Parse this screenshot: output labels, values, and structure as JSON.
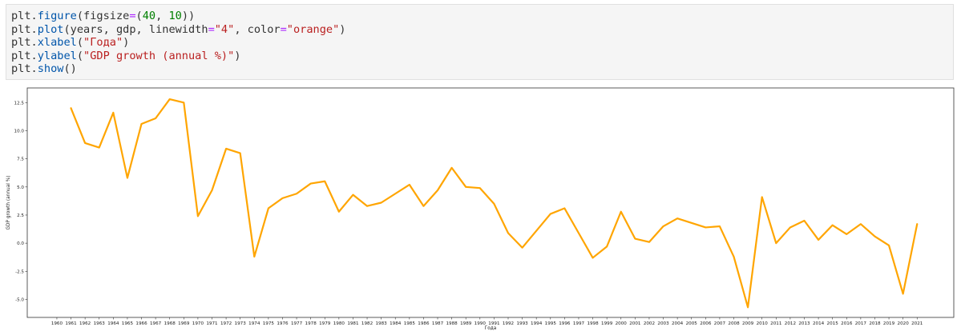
{
  "code_cell": {
    "lines": [
      [
        {
          "t": "plt.",
          "c": "name"
        },
        {
          "t": "figure",
          "c": "fn"
        },
        {
          "t": "(figsize",
          "c": "name"
        },
        {
          "t": "=",
          "c": "op"
        },
        {
          "t": "(",
          "c": "name"
        },
        {
          "t": "40",
          "c": "num"
        },
        {
          "t": ", ",
          "c": "name"
        },
        {
          "t": "10",
          "c": "num"
        },
        {
          "t": "))",
          "c": "name"
        }
      ],
      [
        {
          "t": "plt.",
          "c": "name"
        },
        {
          "t": "plot",
          "c": "fn"
        },
        {
          "t": "(years, gdp, linewidth",
          "c": "name"
        },
        {
          "t": "=",
          "c": "op"
        },
        {
          "t": "\"4\"",
          "c": "str"
        },
        {
          "t": ", color",
          "c": "name"
        },
        {
          "t": "=",
          "c": "op"
        },
        {
          "t": "\"orange\"",
          "c": "str"
        },
        {
          "t": ")",
          "c": "name"
        }
      ],
      [
        {
          "t": "plt.",
          "c": "name"
        },
        {
          "t": "xlabel",
          "c": "fn"
        },
        {
          "t": "(",
          "c": "name"
        },
        {
          "t": "\"Года\"",
          "c": "str"
        },
        {
          "t": ")",
          "c": "name"
        }
      ],
      [
        {
          "t": "plt.",
          "c": "name"
        },
        {
          "t": "ylabel",
          "c": "fn"
        },
        {
          "t": "(",
          "c": "name"
        },
        {
          "t": "\"GDP growth (annual %)\"",
          "c": "str"
        },
        {
          "t": ")",
          "c": "name"
        }
      ],
      [
        {
          "t": "plt.",
          "c": "name"
        },
        {
          "t": "show",
          "c": "fn"
        },
        {
          "t": "()",
          "c": "name"
        }
      ]
    ]
  },
  "chart_data": {
    "type": "line",
    "title": "",
    "xlabel": "Года",
    "ylabel": "GDP growth (annual %)",
    "line_color": "#ffa500",
    "x_ticks": [
      "1960",
      "1961",
      "1962",
      "1963",
      "1964",
      "1965",
      "1966",
      "1967",
      "1968",
      "1969",
      "1970",
      "1971",
      "1972",
      "1973",
      "1974",
      "1975",
      "1976",
      "1977",
      "1978",
      "1979",
      "1980",
      "1981",
      "1982",
      "1983",
      "1984",
      "1985",
      "1986",
      "1987",
      "1988",
      "1989",
      "1990",
      "1991",
      "1992",
      "1993",
      "1994",
      "1995",
      "1996",
      "1997",
      "1998",
      "1999",
      "2000",
      "2001",
      "2002",
      "2003",
      "2004",
      "2005",
      "2006",
      "2007",
      "2008",
      "2009",
      "2010",
      "2011",
      "2012",
      "2013",
      "2014",
      "2015",
      "2016",
      "2017",
      "2018",
      "2019",
      "2020",
      "2021"
    ],
    "y_ticks": [
      "-5.0",
      "-2.5",
      "0.0",
      "2.5",
      "5.0",
      "7.5",
      "10.0",
      "12.5"
    ],
    "y_tick_values": [
      -5.0,
      -2.5,
      0.0,
      2.5,
      5.0,
      7.5,
      10.0,
      12.5
    ],
    "xlim": [
      1959.0,
      1962.0
    ],
    "ylim": [
      -6.6,
      13.8
    ],
    "x": [
      1961,
      1962,
      1963,
      1964,
      1965,
      1966,
      1967,
      1968,
      1969,
      1970,
      1971,
      1972,
      1973,
      1974,
      1975,
      1976,
      1977,
      1978,
      1979,
      1980,
      1981,
      1982,
      1983,
      1984,
      1985,
      1986,
      1987,
      1988,
      1989,
      1990,
      1991,
      1992,
      1993,
      1994,
      1995,
      1996,
      1997,
      1998,
      1999,
      2000,
      2001,
      2002,
      2003,
      2004,
      2005,
      2006,
      2007,
      2008,
      2009,
      2010,
      2011,
      2012,
      2013,
      2014,
      2015,
      2016,
      2017,
      2018,
      2019,
      2020,
      2021
    ],
    "y": [
      12.0,
      8.9,
      8.5,
      11.6,
      5.8,
      10.6,
      11.1,
      12.8,
      12.5,
      2.4,
      4.7,
      8.4,
      8.0,
      -1.2,
      3.1,
      4.0,
      4.4,
      5.3,
      5.5,
      2.8,
      4.3,
      3.3,
      3.6,
      4.4,
      5.2,
      3.3,
      4.7,
      6.7,
      5.0,
      4.9,
      3.5,
      0.9,
      -0.4,
      1.1,
      2.6,
      3.1,
      0.9,
      -1.3,
      -0.3,
      2.8,
      0.4,
      0.1,
      1.5,
      2.2,
      1.8,
      1.4,
      1.5,
      -1.2,
      -5.7,
      4.1,
      0.0,
      1.4,
      2.0,
      0.3,
      1.6,
      0.8,
      1.7,
      0.6,
      -0.2,
      -4.5,
      1.7
    ]
  }
}
